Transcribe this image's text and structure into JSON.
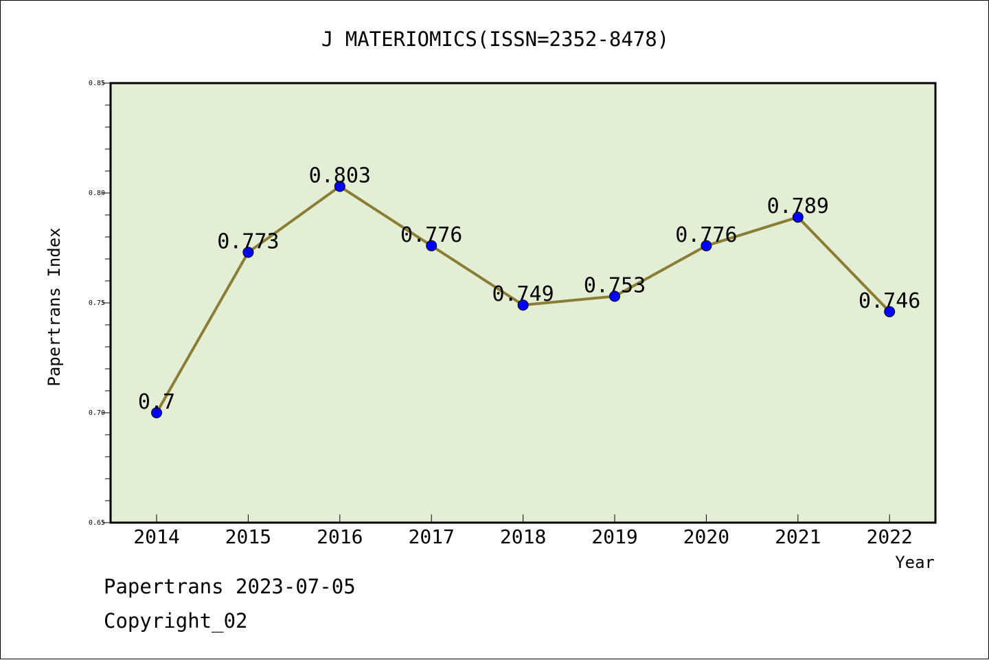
{
  "chart_data": {
    "type": "line",
    "title": "J MATERIOMICS(ISSN=2352-8478)",
    "xlabel": "Year",
    "ylabel": "Papertrans Index",
    "categories": [
      "2014",
      "2015",
      "2016",
      "2017",
      "2018",
      "2019",
      "2020",
      "2021",
      "2022"
    ],
    "values": [
      0.7,
      0.773,
      0.803,
      0.776,
      0.749,
      0.753,
      0.776,
      0.789,
      0.746
    ],
    "data_labels": [
      "0.7",
      "0.773",
      "0.803",
      "0.776",
      "0.749",
      "0.753",
      "0.776",
      "0.789",
      "0.746"
    ],
    "ylim": [
      0.65,
      0.85
    ],
    "yticks": [
      "0.65",
      "0.70",
      "0.75",
      "0.80",
      "0.85"
    ],
    "grid": false,
    "legend": "none",
    "colors": {
      "plot_background": "#e2efd5",
      "line": "#8b7d35",
      "marker": "#0000ff"
    }
  },
  "footer": {
    "date_text": "Papertrans 2023-07-05",
    "copyright_text": "Copyright_02"
  }
}
